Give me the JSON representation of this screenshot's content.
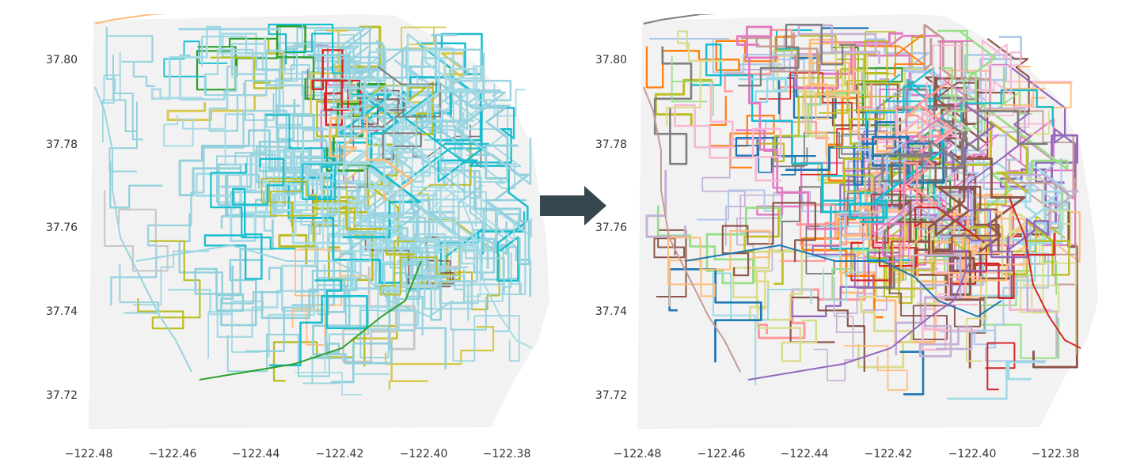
{
  "figure": {
    "background_color": "#ffffff",
    "land_color": "#f2f2f2",
    "arrow_color": "#37474f",
    "arrow_icon": "right-arrow-icon"
  },
  "panels": [
    {
      "id": "before",
      "x_ticks": [
        "−122.48",
        "−122.46",
        "−122.44",
        "−122.42",
        "−122.40",
        "−122.38"
      ],
      "y_ticks": [
        "37.80",
        "37.78",
        "37.76",
        "37.74",
        "37.72"
      ],
      "palette": [
        "#9ad4e0",
        "#8fd0dc",
        "#a6dbe6",
        "#17becf",
        "#bcbd22",
        "#d6c84a",
        "#7f7f7f",
        "#2ca02c",
        "#d62728",
        "#e377c2",
        "#8c564b",
        "#c7c7c7",
        "#ffbb78"
      ],
      "palette_weights": [
        30,
        30,
        22,
        10,
        7,
        4,
        3,
        2,
        1,
        1,
        1,
        2,
        1
      ]
    },
    {
      "id": "after",
      "x_ticks": [
        "−122.48",
        "−122.46",
        "−122.44",
        "−122.42",
        "−122.40",
        "−122.38"
      ],
      "y_ticks": [
        "37.80",
        "37.78",
        "37.76",
        "37.74",
        "37.72"
      ],
      "palette": [
        "#1f77b4",
        "#ff7f0e",
        "#2ca02c",
        "#d62728",
        "#9467bd",
        "#8c564b",
        "#e377c2",
        "#7f7f7f",
        "#bcbd22",
        "#17becf",
        "#aec7e8",
        "#ffbb78",
        "#98df8a",
        "#ff9896",
        "#c5b0d5",
        "#c49c94",
        "#f7b6d2",
        "#dbdb8d",
        "#9edae5"
      ],
      "palette_weights": [
        1,
        1,
        1,
        1,
        1,
        1,
        1,
        1,
        1,
        1,
        1,
        1,
        1,
        1,
        1,
        1,
        1,
        1,
        1
      ]
    }
  ],
  "map_extent": {
    "lon_range": [
      -122.485,
      -122.37
    ],
    "lat_range": [
      37.711,
      37.812
    ]
  }
}
